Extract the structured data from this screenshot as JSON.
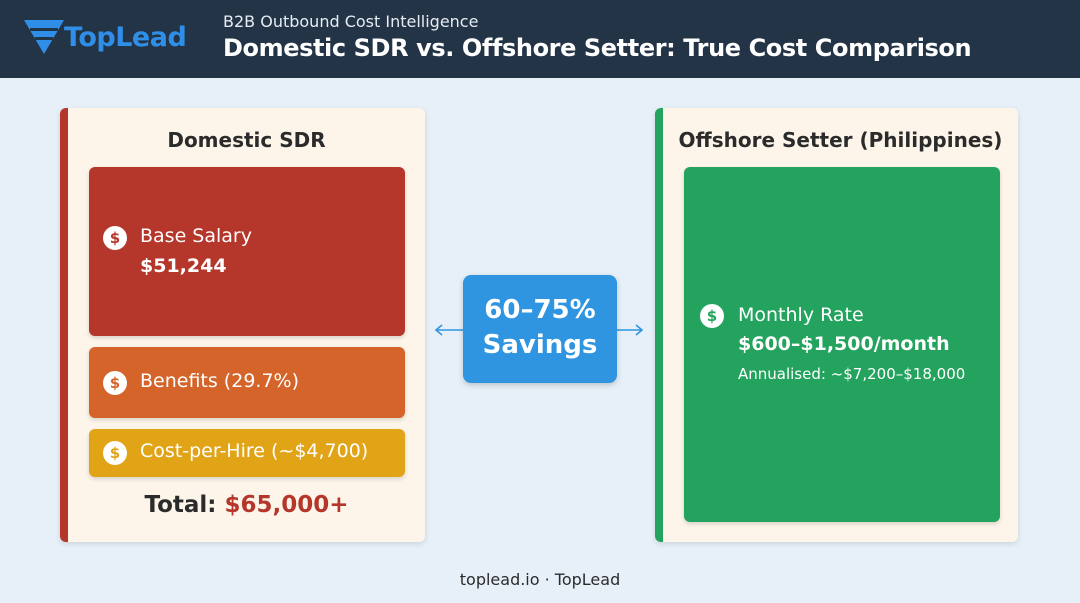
{
  "logo": {
    "text": "TopLead"
  },
  "header": {
    "subtitle": "B2B Outbound Cost Intelligence",
    "title": "Domestic SDR vs. Offshore Setter: True Cost Comparison"
  },
  "icon_symbol": "$",
  "left": {
    "title": "Domestic SDR",
    "items": [
      {
        "label": "Base Salary",
        "value": "$51,244"
      },
      {
        "label": "Benefits (29.7%)"
      },
      {
        "label": "Cost-per-Hire (~$4,700)"
      }
    ],
    "total_label": "Total:",
    "total_value": "$65,000+"
  },
  "center": {
    "lines": [
      "60–75%",
      "Savings"
    ]
  },
  "right": {
    "title": "Offshore Setter (Philippines)",
    "item": {
      "label": "Monthly Rate",
      "value": "$600–$1,500/month",
      "note": "Annualised: ~$7,200–$18,000"
    }
  },
  "footer": {
    "text": "toplead.io · TopLead"
  }
}
